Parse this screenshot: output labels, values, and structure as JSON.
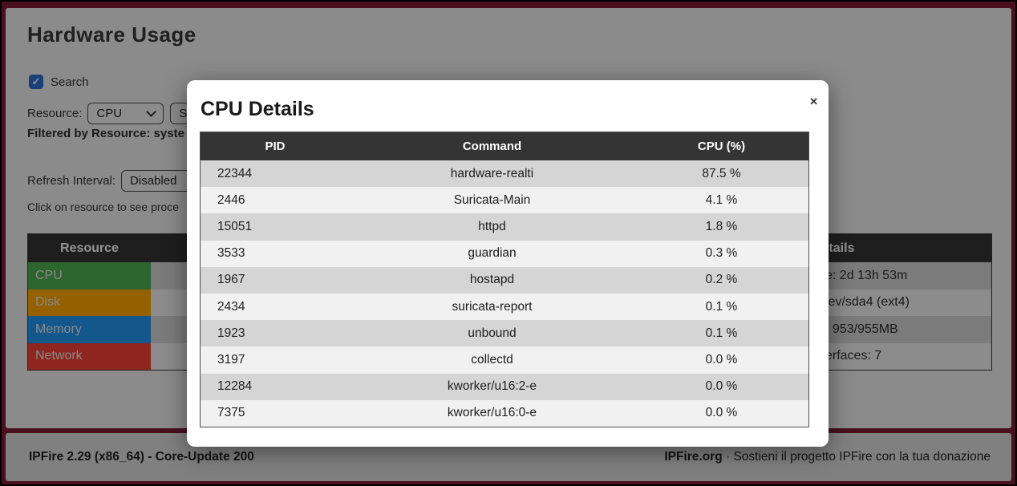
{
  "page": {
    "title": "Hardware Usage",
    "search_checkbox_label": "Search",
    "checkbox_check_icon": "✓",
    "resource_label": "Resource:",
    "resource_select_value": "CPU",
    "search_button_label": "Se",
    "filtered_text": "Filtered by Resource: syste",
    "refresh_label": "Refresh Interval:",
    "refresh_select_value": "Disabled",
    "hint_text": "Click on resource to see proce",
    "resource_table": {
      "header": "Resource",
      "rows": [
        {
          "label": "CPU",
          "color": "#4CAF50"
        },
        {
          "label": "Disk",
          "color": "#FFA500"
        },
        {
          "label": "Memory",
          "color": "#2196F3"
        },
        {
          "label": "Network",
          "color": "#F44336"
        }
      ]
    },
    "details_table": {
      "header": "Details",
      "rows": [
        "e: 2d 13h 53m",
        "lev/sda4 (ext4)",
        ": 953/955MB",
        "erfaces: 7"
      ]
    }
  },
  "modal": {
    "title": "CPU Details",
    "close_icon": "✕",
    "table": {
      "columns": [
        "PID",
        "Command",
        "CPU (%)"
      ],
      "rows": [
        [
          "22344",
          "hardware-realti",
          "87.5 %"
        ],
        [
          "2446",
          "Suricata-Main",
          "4.1 %"
        ],
        [
          "15051",
          "httpd",
          "1.8 %"
        ],
        [
          "3533",
          "guardian",
          "0.3 %"
        ],
        [
          "1967",
          "hostapd",
          "0.2 %"
        ],
        [
          "2434",
          "suricata-report",
          "0.1 %"
        ],
        [
          "1923",
          "unbound",
          "0.1 %"
        ],
        [
          "3197",
          "collectd",
          "0.0 %"
        ],
        [
          "12284",
          "kworker/u16:2-e",
          "0.0 %"
        ],
        [
          "7375",
          "kworker/u16:0-e",
          "0.0 %"
        ]
      ]
    }
  },
  "footer": {
    "left": "IPFire 2.29 (x86_64) - Core-Update 200",
    "right_bold": "IPFire.org",
    "right_rest": " · Sostieni il progetto IPFire con la tua donazione"
  },
  "colors": {
    "frame_maroon": "#801C34",
    "page_bg": "#F0F0F0",
    "footer_bg": "#DCDCDC",
    "table_header_bg": "#343434",
    "row_stripe_dark": "#D5D5D5",
    "row_stripe_light": "#F1F1F1",
    "checkbox_blue": "#2F6FD0",
    "cpu_green": "#4CAF50",
    "disk_orange": "#FFA500",
    "memory_blue": "#2196F3",
    "network_red": "#F44336"
  }
}
